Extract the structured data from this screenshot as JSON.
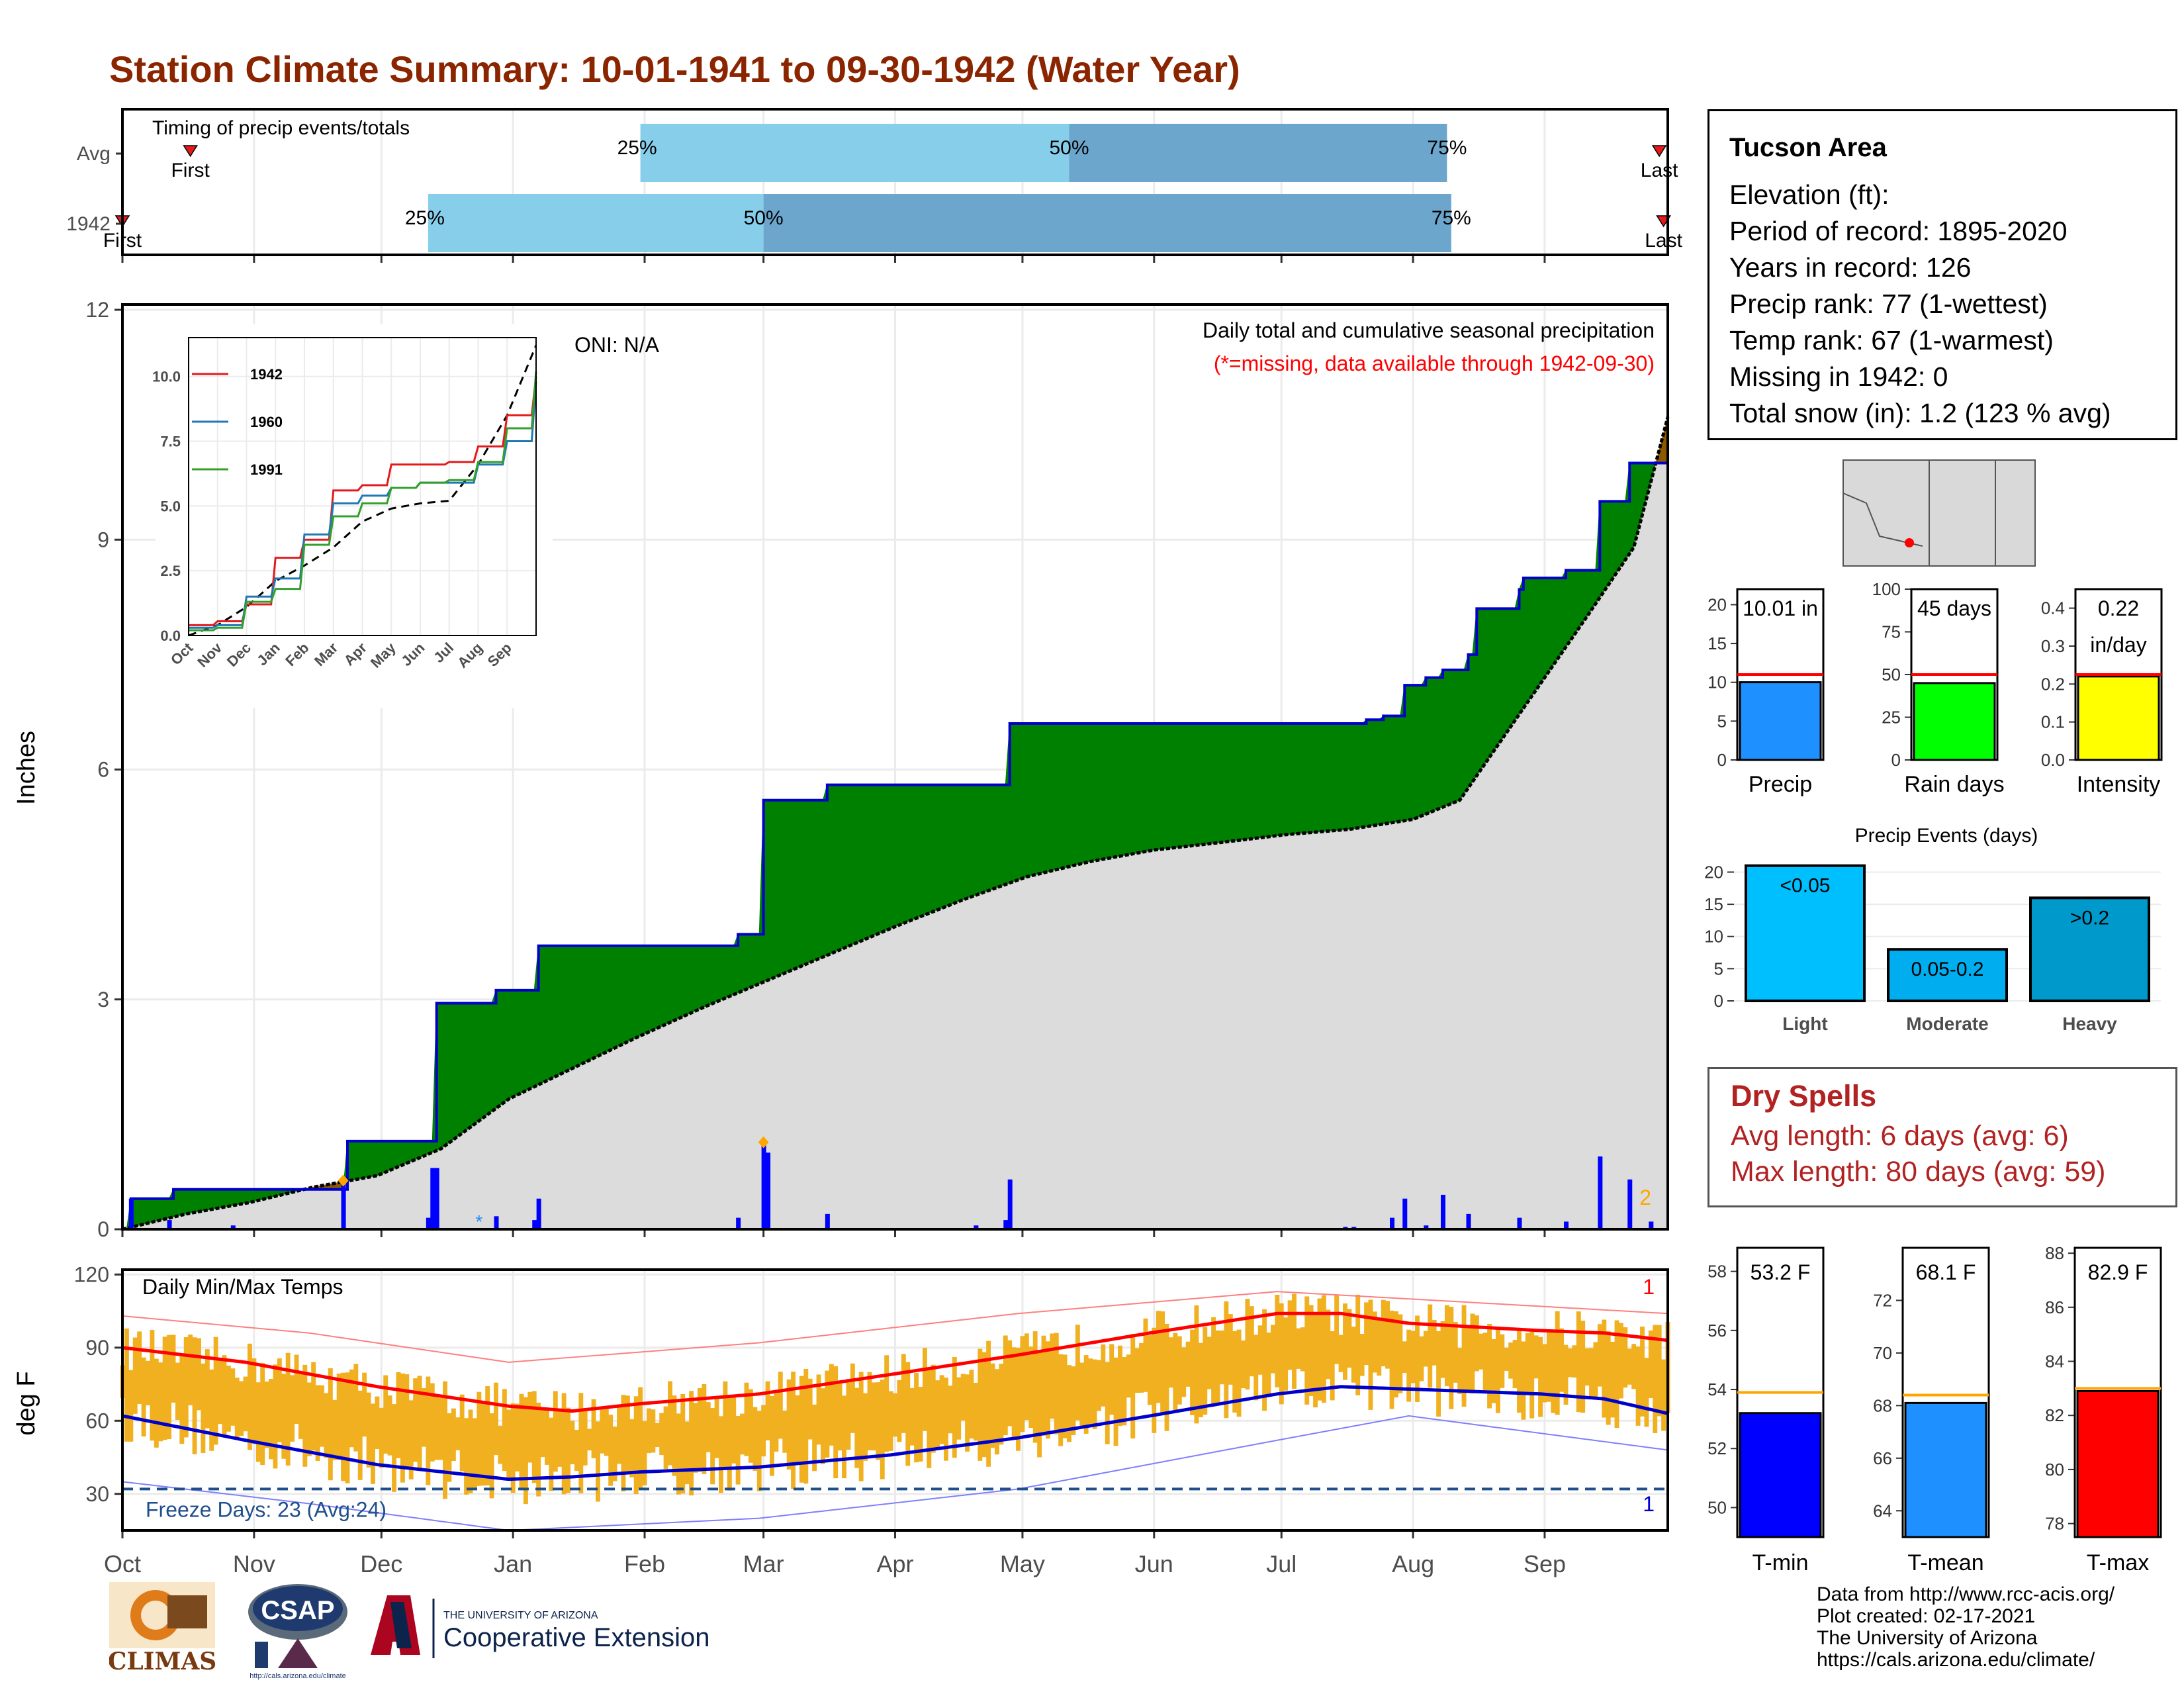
{
  "header": {
    "title": "Station Climate Summary: 10-01-1941 to 09-30-1942 (Water Year)"
  },
  "station_info": {
    "name": "Tucson Area",
    "lines": [
      "Elevation (ft):",
      "Period of record: 1895-2020",
      "Years in record: 126",
      "Precip rank: 77 (1-wettest)",
      "Temp rank: 67 (1-warmest)",
      "Missing in 1942: 0",
      "Total snow (in): 1.2 (123 % avg)"
    ]
  },
  "dry_spells": {
    "title": "Dry Spells",
    "avg_length": "Avg length: 6 days (avg: 6)",
    "max_length": "Max length: 80 days (avg: 59)"
  },
  "credits": [
    "Data from http://www.rcc-acis.org/",
    "Plot created: 02-17-2021",
    "The University of Arizona",
    "https://cals.arizona.edu/climate/"
  ],
  "logos": {
    "climas": "CLIMAS",
    "csap": "CSAP",
    "ua_small": "THE UNIVERSITY OF ARIZONA",
    "ua_ext": "Cooperative Extension",
    "csap_url": "http://cals.arizona.edu/climate"
  },
  "colors": {
    "title": "#8B2500",
    "above_avg_precip": "#008000",
    "below_avg_precip": "#8B5A00",
    "cumulative_line": "#0000CD",
    "avg_area": "#DCDCDC",
    "temp_bars": "#F0B020",
    "avg_max": "#FF0000",
    "avg_min": "#0000CD",
    "dry_spells": "#B22222"
  },
  "chart_data": [
    {
      "id": "timing",
      "type": "bar",
      "title": "Timing of precip events/totals",
      "rows": [
        {
          "label": "Avg",
          "first": "Oct 17",
          "p25": "Jan 31",
          "p50": "May 12",
          "p75": "Aug 9",
          "last": "Sep 28",
          "first_label": "First",
          "last_label": "Last"
        },
        {
          "label": "1942",
          "first": "Oct 1",
          "p25": "Dec 12",
          "p50": "Mar 1",
          "p75": "Aug 10",
          "last": "Sep 29",
          "first_label": "First",
          "last_label": "Last"
        }
      ],
      "pct_labels": [
        "25%",
        "50%",
        "75%"
      ]
    },
    {
      "id": "precip",
      "type": "area",
      "ylabel": "Inches",
      "annotation_title": "Daily total and cumulative seasonal precipitation",
      "annotation_missing": "(*=missing, data available through 1942-09-30)",
      "oni": "ONI: N/A",
      "corner_count": "2",
      "ylim": [
        0,
        12
      ],
      "yticks": [
        "0",
        "3",
        "6",
        "9",
        "12"
      ],
      "months": [
        "Oct",
        "Nov",
        "Dec",
        "Jan",
        "Feb",
        "Mar",
        "Apr",
        "May",
        "Jun",
        "Jul",
        "Aug",
        "Sep"
      ],
      "avg_cumulative": [
        [
          1,
          0.0
        ],
        [
          16,
          0.2
        ],
        [
          31,
          0.35
        ],
        [
          46,
          0.55
        ],
        [
          61,
          0.7
        ],
        [
          76,
          1.05
        ],
        [
          92,
          1.7
        ],
        [
          107,
          2.1
        ],
        [
          122,
          2.5
        ],
        [
          138,
          2.9
        ],
        [
          153,
          3.25
        ],
        [
          168,
          3.6
        ],
        [
          183,
          3.95
        ],
        [
          199,
          4.3
        ],
        [
          214,
          4.6
        ],
        [
          229,
          4.8
        ],
        [
          244,
          4.95
        ],
        [
          260,
          5.05
        ],
        [
          275,
          5.15
        ],
        [
          290,
          5.22
        ],
        [
          305,
          5.35
        ],
        [
          316,
          5.6
        ],
        [
          321,
          6.0
        ],
        [
          331,
          6.8
        ],
        [
          346,
          8.0
        ],
        [
          357,
          8.9
        ],
        [
          365,
          10.6
        ]
      ],
      "observed_cumulative": [
        [
          1,
          0.0
        ],
        [
          3,
          0.4
        ],
        [
          12,
          0.4
        ],
        [
          13,
          0.52
        ],
        [
          53,
          0.52
        ],
        [
          54,
          1.15
        ],
        [
          74,
          1.15
        ],
        [
          75,
          2.95
        ],
        [
          88,
          2.95
        ],
        [
          89,
          3.12
        ],
        [
          98,
          3.12
        ],
        [
          99,
          3.7
        ],
        [
          145,
          3.7
        ],
        [
          146,
          3.85
        ],
        [
          151,
          3.85
        ],
        [
          152,
          5.6
        ],
        [
          166,
          5.6
        ],
        [
          167,
          5.8
        ],
        [
          209,
          5.8
        ],
        [
          210,
          6.6
        ],
        [
          290,
          6.6
        ],
        [
          294,
          6.65
        ],
        [
          298,
          6.7
        ],
        [
          303,
          7.1
        ],
        [
          308,
          7.2
        ],
        [
          312,
          7.3
        ],
        [
          318,
          7.5
        ],
        [
          320,
          8.1
        ],
        [
          330,
          8.35
        ],
        [
          331,
          8.5
        ],
        [
          340,
          8.5
        ],
        [
          341,
          8.6
        ],
        [
          348,
          8.6
        ],
        [
          349,
          9.5
        ],
        [
          355,
          9.5
        ],
        [
          356,
          10.0
        ],
        [
          365,
          10.0
        ]
      ],
      "daily": [
        [
          3,
          0.4
        ],
        [
          12,
          0.12
        ],
        [
          27,
          0.05
        ],
        [
          53,
          0.63
        ],
        [
          73,
          0.15
        ],
        [
          74,
          0.8
        ],
        [
          75,
          0.8
        ],
        [
          89,
          0.17
        ],
        [
          98,
          0.12
        ],
        [
          99,
          0.4
        ],
        [
          146,
          0.15
        ],
        [
          152,
          1.1
        ],
        [
          153,
          1.0
        ],
        [
          167,
          0.2
        ],
        [
          202,
          0.05
        ],
        [
          209,
          0.12
        ],
        [
          210,
          0.65
        ],
        [
          289,
          0.03
        ],
        [
          291,
          0.03
        ],
        [
          300,
          0.15
        ],
        [
          303,
          0.4
        ],
        [
          308,
          0.05
        ],
        [
          312,
          0.45
        ],
        [
          318,
          0.2
        ],
        [
          330,
          0.15
        ],
        [
          341,
          0.1
        ],
        [
          349,
          0.95
        ],
        [
          356,
          0.65
        ],
        [
          361,
          0.1
        ]
      ],
      "markers_orange": [
        [
          53,
          0.6
        ],
        [
          152,
          1.1
        ]
      ],
      "missing_marks": [
        [
          85,
          0.1
        ]
      ]
    },
    {
      "id": "inset",
      "type": "line",
      "ylim": [
        0,
        11.5
      ],
      "yticks": [
        "0.0",
        "2.5",
        "5.0",
        "7.5",
        "10.0"
      ],
      "months": [
        "Oct",
        "Nov",
        "Dec",
        "Jan",
        "Feb",
        "Mar",
        "Apr",
        "May",
        "Jun",
        "Jul",
        "Aug",
        "Sep"
      ],
      "series": [
        {
          "name": "1942",
          "color": "#E31A1C",
          "values": [
            [
              0,
              0.4
            ],
            [
              1,
              0.55
            ],
            [
              2,
              1.2
            ],
            [
              3,
              3.0
            ],
            [
              4,
              3.7
            ],
            [
              5,
              5.6
            ],
            [
              6,
              5.8
            ],
            [
              7,
              6.6
            ],
            [
              8,
              6.6
            ],
            [
              9,
              6.7
            ],
            [
              10,
              7.3
            ],
            [
              11,
              8.5
            ],
            [
              12,
              10.0
            ]
          ]
        },
        {
          "name": "1960",
          "color": "#1F78B4",
          "values": [
            [
              0,
              0.3
            ],
            [
              1,
              0.4
            ],
            [
              2,
              1.5
            ],
            [
              3,
              2.2
            ],
            [
              4,
              3.9
            ],
            [
              5,
              5.1
            ],
            [
              6,
              5.4
            ],
            [
              7,
              5.7
            ],
            [
              8,
              5.9
            ],
            [
              9,
              5.9
            ],
            [
              10,
              6.6
            ],
            [
              11,
              7.5
            ],
            [
              12,
              9.8
            ]
          ]
        },
        {
          "name": "1991",
          "color": "#33A02C",
          "values": [
            [
              0,
              0.2
            ],
            [
              1,
              0.3
            ],
            [
              2,
              1.3
            ],
            [
              3,
              1.8
            ],
            [
              4,
              3.5
            ],
            [
              5,
              4.6
            ],
            [
              6,
              5.1
            ],
            [
              7,
              5.7
            ],
            [
              8,
              5.9
            ],
            [
              9,
              6.0
            ],
            [
              10,
              6.7
            ],
            [
              11,
              8.0
            ],
            [
              12,
              10.2
            ]
          ]
        }
      ],
      "avg": [
        [
          0,
          0.0
        ],
        [
          1,
          0.4
        ],
        [
          2,
          1.1
        ],
        [
          3,
          2.1
        ],
        [
          4,
          2.7
        ],
        [
          5,
          3.4
        ],
        [
          6,
          4.4
        ],
        [
          7,
          4.9
        ],
        [
          8,
          5.1
        ],
        [
          9,
          5.2
        ],
        [
          10,
          6.6
        ],
        [
          11,
          8.5
        ],
        [
          12,
          11.2
        ]
      ]
    },
    {
      "id": "temps",
      "type": "bar",
      "title": "Daily Min/Max Temps",
      "ylabel": "deg F",
      "ylim": [
        15,
        122
      ],
      "yticks": [
        "30",
        "60",
        "90",
        "120"
      ],
      "freeze_line": 32,
      "freeze_label": "Freeze Days: 23 (Avg:24)",
      "record_high_count": "1",
      "record_low_count": "1",
      "avg_max": [
        [
          1,
          90
        ],
        [
          30,
          84
        ],
        [
          61,
          74
        ],
        [
          92,
          66
        ],
        [
          107,
          64
        ],
        [
          123,
          67
        ],
        [
          151,
          71
        ],
        [
          182,
          79
        ],
        [
          212,
          87
        ],
        [
          243,
          96
        ],
        [
          273,
          104
        ],
        [
          288,
          104
        ],
        [
          304,
          100
        ],
        [
          335,
          97
        ],
        [
          350,
          96
        ],
        [
          365,
          93
        ]
      ],
      "avg_min": [
        [
          1,
          62
        ],
        [
          30,
          52
        ],
        [
          61,
          42
        ],
        [
          92,
          36
        ],
        [
          107,
          37
        ],
        [
          123,
          39
        ],
        [
          151,
          41
        ],
        [
          182,
          46
        ],
        [
          212,
          53
        ],
        [
          243,
          62
        ],
        [
          273,
          71
        ],
        [
          288,
          74
        ],
        [
          304,
          73
        ],
        [
          335,
          71
        ],
        [
          350,
          69
        ],
        [
          365,
          63
        ]
      ],
      "record_max": [
        [
          1,
          103
        ],
        [
          45,
          96
        ],
        [
          92,
          84
        ],
        [
          151,
          92
        ],
        [
          212,
          104
        ],
        [
          273,
          113
        ],
        [
          304,
          110
        ],
        [
          365,
          104
        ]
      ],
      "record_min": [
        [
          1,
          35
        ],
        [
          45,
          26
        ],
        [
          92,
          15
        ],
        [
          151,
          20
        ],
        [
          212,
          32
        ],
        [
          273,
          52
        ],
        [
          304,
          62
        ],
        [
          365,
          48
        ]
      ],
      "months": [
        "Oct",
        "Nov",
        "Dec",
        "Jan",
        "Feb",
        "Mar",
        "Apr",
        "May",
        "Jun",
        "Jul",
        "Aug",
        "Sep"
      ]
    },
    {
      "id": "precip-summary",
      "type": "bar",
      "panels": [
        {
          "label": "Precip",
          "value": 10.01,
          "avg": 11.0,
          "ylim": [
            0,
            22
          ],
          "yticks": [
            "0",
            "5",
            "10",
            "15",
            "20"
          ],
          "text1": "10.01 in",
          "text2": "",
          "color": "#1E90FF"
        },
        {
          "label": "Rain days",
          "value": 45,
          "avg": 50,
          "ylim": [
            0,
            100
          ],
          "yticks": [
            "0",
            "25",
            "50",
            "75",
            "100"
          ],
          "text1": "45 days",
          "text2": "",
          "color": "#00FF00"
        },
        {
          "label": "Intensity",
          "value": 0.22,
          "avg": 0.225,
          "ylim": [
            0,
            0.45
          ],
          "yticks": [
            "0.0",
            "0.1",
            "0.2",
            "0.3",
            "0.4"
          ],
          "text1": "0.22",
          "text2": "in/day",
          "color": "#FFFF00"
        }
      ]
    },
    {
      "id": "precip-events",
      "type": "bar",
      "title": "Precip Events (days)",
      "categories": [
        "Light",
        "Moderate",
        "Heavy"
      ],
      "values": [
        21,
        8,
        16
      ],
      "bar_labels": [
        "<0.05",
        "0.05-0.2",
        ">0.2"
      ],
      "ylim": [
        0,
        22
      ],
      "yticks": [
        "0",
        "5",
        "10",
        "15",
        "20"
      ],
      "colors": [
        "#00BFFF",
        "#00AEEF",
        "#0099CC"
      ]
    },
    {
      "id": "temp-summary",
      "type": "bar",
      "panels": [
        {
          "label": "T-min",
          "value": 53.2,
          "avg": 53.9,
          "ylim": [
            49,
            58.8
          ],
          "yticks": [
            "50",
            "52",
            "54",
            "56",
            "58"
          ],
          "text": "53.2 F",
          "color": "#0000FF"
        },
        {
          "label": "T-mean",
          "value": 68.1,
          "avg": 68.4,
          "ylim": [
            63,
            74
          ],
          "yticks": [
            "64",
            "66",
            "68",
            "70",
            "72"
          ],
          "text": "68.1 F",
          "color": "#1E90FF"
        },
        {
          "label": "T-max",
          "value": 82.9,
          "avg": 83.0,
          "ylim": [
            77.5,
            88.2
          ],
          "yticks": [
            "78",
            "80",
            "82",
            "84",
            "86",
            "88"
          ],
          "text": "82.9 F",
          "color": "#FF0000"
        }
      ]
    }
  ]
}
